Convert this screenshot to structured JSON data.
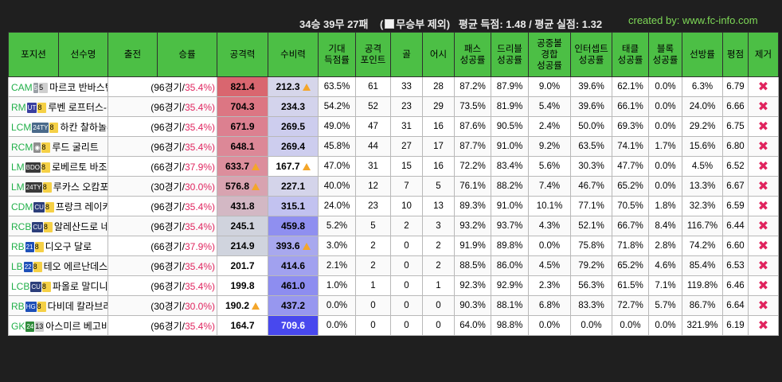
{
  "summary": {
    "record": "34승 39무 27패",
    "exclude_prefix": "(",
    "exclude_label": "무승부 제외)",
    "avg_scored": "평균 득점: 1.48 / 평균 실점: 1.32"
  },
  "credit": "created by: www.fc-info.com",
  "headers": [
    "포지션",
    "선수명",
    "출전",
    "승률",
    "공격력",
    "수비력",
    "기대\n득점률",
    "공격\n포인트",
    "골",
    "어시",
    "패스\n성공률",
    "드리블\n성공률",
    "공중볼\n경합\n성공률",
    "인터셉트\n성공률",
    "태클\n성공률",
    "블록\n성공률",
    "선방률",
    "평점",
    "제거"
  ],
  "colors": {
    "header_bg": "#4cbf45",
    "position": "#22b04a",
    "winrate_pct": "#e0245e",
    "remove": "#e0245e"
  },
  "remove_icon": "close-x-icon",
  "players": [
    {
      "pos": "CAM",
      "badge": "5",
      "badge_color": "#9aa0a6",
      "lvl": "5",
      "lvl_grey": true,
      "name": "마르코 반바스텐",
      "games": "(96경기/",
      "pct": "35.4%)",
      "atk": "821.4",
      "atk_bg": "#d9666f",
      "atk_warn": false,
      "def": "212.3",
      "def_bg": "#d6d6ea",
      "def_warn": true,
      "xg": "63.5%",
      "ap": "61",
      "goals": "33",
      "assists": "28",
      "pass": "87.2%",
      "drib": "87.9%",
      "aerial": "9.0%",
      "intercept": "39.6%",
      "tackle": "62.1%",
      "block": "0.0%",
      "save": "6.3%",
      "rating": "6.79"
    },
    {
      "pos": "RM",
      "badge": "UT",
      "badge_color": "#3a3fa0",
      "lvl": "8",
      "lvl_grey": false,
      "name": "루벤 로프터스-칙",
      "games": "(96경기/",
      "pct": "35.4%)",
      "atk": "704.3",
      "atk_bg": "#dc7683",
      "atk_warn": false,
      "def": "234.3",
      "def_bg": "#d3d3ec",
      "def_warn": false,
      "xg": "54.2%",
      "ap": "52",
      "goals": "23",
      "assists": "29",
      "pass": "73.5%",
      "drib": "81.9%",
      "aerial": "5.4%",
      "intercept": "39.6%",
      "tackle": "66.1%",
      "block": "0.0%",
      "save": "24.0%",
      "rating": "6.66"
    },
    {
      "pos": "LCM",
      "badge": "24TY",
      "badge_color": "#4a6a8a",
      "lvl": "8",
      "lvl_grey": false,
      "name": "하칸 찰하놀루",
      "games": "(96경기/",
      "pct": "35.4%)",
      "atk": "671.9",
      "atk_bg": "#dc8090",
      "atk_warn": false,
      "def": "269.5",
      "def_bg": "#cdcdee",
      "def_warn": false,
      "xg": "49.0%",
      "ap": "47",
      "goals": "31",
      "assists": "16",
      "pass": "87.6%",
      "drib": "90.5%",
      "aerial": "2.4%",
      "intercept": "50.0%",
      "tackle": "69.3%",
      "block": "0.0%",
      "save": "29.2%",
      "rating": "6.75"
    },
    {
      "pos": "RCM",
      "badge": "◉",
      "badge_color": "#8e8e8e",
      "lvl": "8",
      "lvl_grey": false,
      "name": "루드 굴리트",
      "games": "(96경기/",
      "pct": "35.4%)",
      "atk": "648.1",
      "atk_bg": "#dc8897",
      "atk_warn": false,
      "def": "269.4",
      "def_bg": "#cdcdee",
      "def_warn": false,
      "xg": "45.8%",
      "ap": "44",
      "goals": "27",
      "assists": "17",
      "pass": "87.7%",
      "drib": "91.0%",
      "aerial": "9.2%",
      "intercept": "63.5%",
      "tackle": "74.1%",
      "block": "1.7%",
      "save": "15.6%",
      "rating": "6.80"
    },
    {
      "pos": "LM",
      "badge": "BDO",
      "badge_color": "#3a3a3a",
      "lvl": "8",
      "lvl_grey": false,
      "name": "로베르토 바조",
      "games": "(66경기/",
      "pct": "37.9%)",
      "atk": "633.7",
      "atk_bg": "#dc8e9c",
      "atk_warn": true,
      "def": "167.7",
      "def_bg": "#ffffff",
      "def_warn": true,
      "xg": "47.0%",
      "ap": "31",
      "goals": "15",
      "assists": "16",
      "pass": "72.2%",
      "drib": "83.4%",
      "aerial": "5.6%",
      "intercept": "30.3%",
      "tackle": "47.7%",
      "block": "0.0%",
      "save": "4.5%",
      "rating": "6.52"
    },
    {
      "pos": "LM",
      "badge": "24TY",
      "badge_color": "#3a3a3a",
      "lvl": "8",
      "lvl_grey": false,
      "name": "루카스 오캄포스",
      "games": "(30경기/",
      "pct": "30.0%)",
      "atk": "576.8",
      "atk_bg": "#d8a3b0",
      "atk_warn": true,
      "def": "227.1",
      "def_bg": "#d4d4ea",
      "def_warn": false,
      "xg": "40.0%",
      "ap": "12",
      "goals": "7",
      "assists": "5",
      "pass": "76.1%",
      "drib": "88.2%",
      "aerial": "7.4%",
      "intercept": "46.7%",
      "tackle": "65.2%",
      "block": "0.0%",
      "save": "13.3%",
      "rating": "6.67"
    },
    {
      "pos": "CDM",
      "badge": "CU",
      "badge_color": "#2c3e7a",
      "lvl": "8",
      "lvl_grey": false,
      "name": "프랑크 레이카르트",
      "games": "(96경기/",
      "pct": "35.4%)",
      "atk": "431.8",
      "atk_bg": "#d3b8c4",
      "atk_warn": false,
      "def": "315.1",
      "def_bg": "#c2c2f0",
      "def_warn": false,
      "xg": "24.0%",
      "ap": "23",
      "goals": "10",
      "assists": "13",
      "pass": "89.3%",
      "drib": "91.0%",
      "aerial": "10.1%",
      "intercept": "77.1%",
      "tackle": "70.5%",
      "block": "1.8%",
      "save": "32.3%",
      "rating": "6.59"
    },
    {
      "pos": "RCB",
      "badge": "CU",
      "badge_color": "#2c3e7a",
      "lvl": "8",
      "lvl_grey": false,
      "name": "알레산드로 네스타",
      "games": "(96경기/",
      "pct": "35.4%)",
      "atk": "245.1",
      "atk_bg": "#d0d3dd",
      "atk_warn": false,
      "def": "459.8",
      "def_bg": "#8f8ff0",
      "def_warn": false,
      "xg": "5.2%",
      "ap": "5",
      "goals": "2",
      "assists": "3",
      "pass": "93.2%",
      "drib": "93.7%",
      "aerial": "4.3%",
      "intercept": "52.1%",
      "tackle": "66.7%",
      "block": "8.4%",
      "save": "116.7%",
      "rating": "6.44"
    },
    {
      "pos": "RB",
      "badge": "21",
      "badge_color": "#1d4fb8",
      "lvl": "8",
      "lvl_grey": false,
      "name": "디오구 달로",
      "games": "(66경기/",
      "pct": "37.9%)",
      "atk": "214.9",
      "atk_bg": "#d0d4de",
      "atk_warn": false,
      "def": "393.6",
      "def_bg": "#a8a8ee",
      "def_warn": true,
      "xg": "3.0%",
      "ap": "2",
      "goals": "0",
      "assists": "2",
      "pass": "91.9%",
      "drib": "89.8%",
      "aerial": "0.0%",
      "intercept": "75.8%",
      "tackle": "71.8%",
      "block": "2.8%",
      "save": "74.2%",
      "rating": "6.60"
    },
    {
      "pos": "LB",
      "badge": "22",
      "badge_color": "#1d4fb8",
      "lvl": "8",
      "lvl_grey": false,
      "name": "테오 에르난데스",
      "games": "(96경기/",
      "pct": "35.4%)",
      "atk": "201.7",
      "atk_bg": "#ffffff",
      "atk_warn": false,
      "def": "414.6",
      "def_bg": "#a1a1ef",
      "def_warn": false,
      "xg": "2.1%",
      "ap": "2",
      "goals": "0",
      "assists": "2",
      "pass": "88.5%",
      "drib": "86.0%",
      "aerial": "4.5%",
      "intercept": "79.2%",
      "tackle": "65.2%",
      "block": "4.6%",
      "save": "85.4%",
      "rating": "6.53"
    },
    {
      "pos": "LCB",
      "badge": "CU",
      "badge_color": "#2c3e7a",
      "lvl": "8",
      "lvl_grey": false,
      "name": "파올로 말디니",
      "games": "(96경기/",
      "pct": "35.4%)",
      "atk": "199.8",
      "atk_bg": "#ffffff",
      "atk_warn": false,
      "def": "461.0",
      "def_bg": "#8d8df0",
      "def_warn": false,
      "xg": "1.0%",
      "ap": "1",
      "goals": "0",
      "assists": "1",
      "pass": "92.3%",
      "drib": "92.9%",
      "aerial": "2.3%",
      "intercept": "56.3%",
      "tackle": "61.5%",
      "block": "7.1%",
      "save": "119.8%",
      "rating": "6.46"
    },
    {
      "pos": "RB",
      "badge": "HG",
      "badge_color": "#1d4fb8",
      "lvl": "8",
      "lvl_grey": false,
      "name": "다비데 칼라브리아",
      "games": "(30경기/",
      "pct": "30.0%)",
      "atk": "190.2",
      "atk_bg": "#ffffff",
      "atk_warn": true,
      "def": "437.2",
      "def_bg": "#9797ef",
      "def_warn": false,
      "xg": "0.0%",
      "ap": "0",
      "goals": "0",
      "assists": "0",
      "pass": "90.3%",
      "drib": "88.1%",
      "aerial": "6.8%",
      "intercept": "83.3%",
      "tackle": "72.7%",
      "block": "5.7%",
      "save": "86.7%",
      "rating": "6.64"
    },
    {
      "pos": "GK",
      "badge": "24",
      "badge_color": "#2e8b3a",
      "lvl": "13",
      "lvl_grey": true,
      "name": "아스미르 베고비치",
      "games": "(96경기/",
      "pct": "35.4%)",
      "atk": "164.7",
      "atk_bg": "#ffffff",
      "atk_warn": false,
      "def": "709.6",
      "def_bg": "#4848ee",
      "def_warn": false,
      "xg": "0.0%",
      "ap": "0",
      "goals": "0",
      "assists": "0",
      "pass": "64.0%",
      "drib": "98.8%",
      "aerial": "0.0%",
      "intercept": "0.0%",
      "tackle": "0.0%",
      "block": "0.0%",
      "save": "321.9%",
      "rating": "6.19"
    }
  ]
}
